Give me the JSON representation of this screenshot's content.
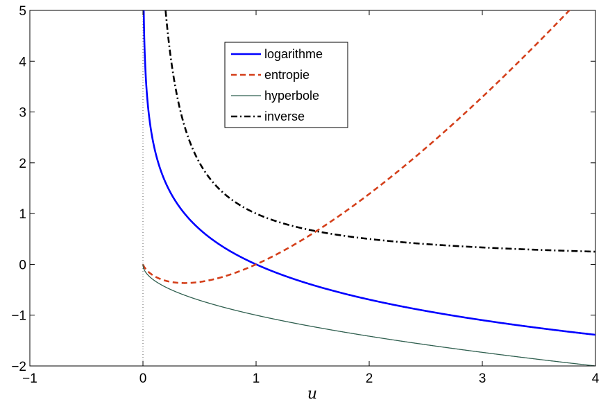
{
  "chart_data": {
    "type": "line",
    "xlabel": "u",
    "ylabel": "",
    "xlim": [
      -1,
      4
    ],
    "ylim": [
      -2,
      5
    ],
    "x_ticks": [
      -1,
      0,
      1,
      2,
      3,
      4
    ],
    "y_ticks": [
      -2,
      -1,
      0,
      1,
      2,
      3,
      4,
      5
    ],
    "x_tick_labels": [
      "−1",
      "0",
      "1",
      "2",
      "3",
      "4"
    ],
    "y_tick_labels": [
      "−2",
      "−1",
      "0",
      "1",
      "2",
      "3",
      "4",
      "5"
    ],
    "grid": false,
    "legend_position": "top-center",
    "vertical_reference_line": {
      "x": 0,
      "style": "dotted"
    },
    "series": [
      {
        "name": "logarithme",
        "function": "-ln(u)",
        "color": "#0000ff",
        "dash": "solid",
        "x_start": 0.0067,
        "points": [
          [
            0.01,
            4.61
          ],
          [
            0.05,
            3.0
          ],
          [
            0.1,
            2.3
          ],
          [
            0.25,
            1.39
          ],
          [
            0.5,
            0.69
          ],
          [
            1,
            0
          ],
          [
            2,
            -0.69
          ],
          [
            3,
            -1.1
          ],
          [
            4,
            -1.39
          ]
        ]
      },
      {
        "name": "entropie",
        "function": "u*ln(u)",
        "color": "#d43f1a",
        "dash": "dashed",
        "x_start": 0,
        "points": [
          [
            0,
            0
          ],
          [
            0.37,
            -0.37
          ],
          [
            1,
            0
          ],
          [
            2,
            1.39
          ],
          [
            3,
            3.3
          ],
          [
            3.8,
            5.07
          ]
        ]
      },
      {
        "name": "hyperbole",
        "function": "-sqrt(u)",
        "color": "#2f5f4f",
        "dash": "solid",
        "x_start": 0,
        "points": [
          [
            0,
            0
          ],
          [
            0.25,
            -0.5
          ],
          [
            1,
            -1
          ],
          [
            2,
            -1.41
          ],
          [
            3,
            -1.73
          ],
          [
            4,
            -2
          ]
        ]
      },
      {
        "name": "inverse",
        "function": "1/u",
        "color": "#000000",
        "dash": "dashdot",
        "x_start": 0.2,
        "points": [
          [
            0.2,
            5
          ],
          [
            0.5,
            2
          ],
          [
            1,
            1
          ],
          [
            2,
            0.5
          ],
          [
            3,
            0.33
          ],
          [
            4,
            0.25
          ]
        ]
      }
    ]
  }
}
